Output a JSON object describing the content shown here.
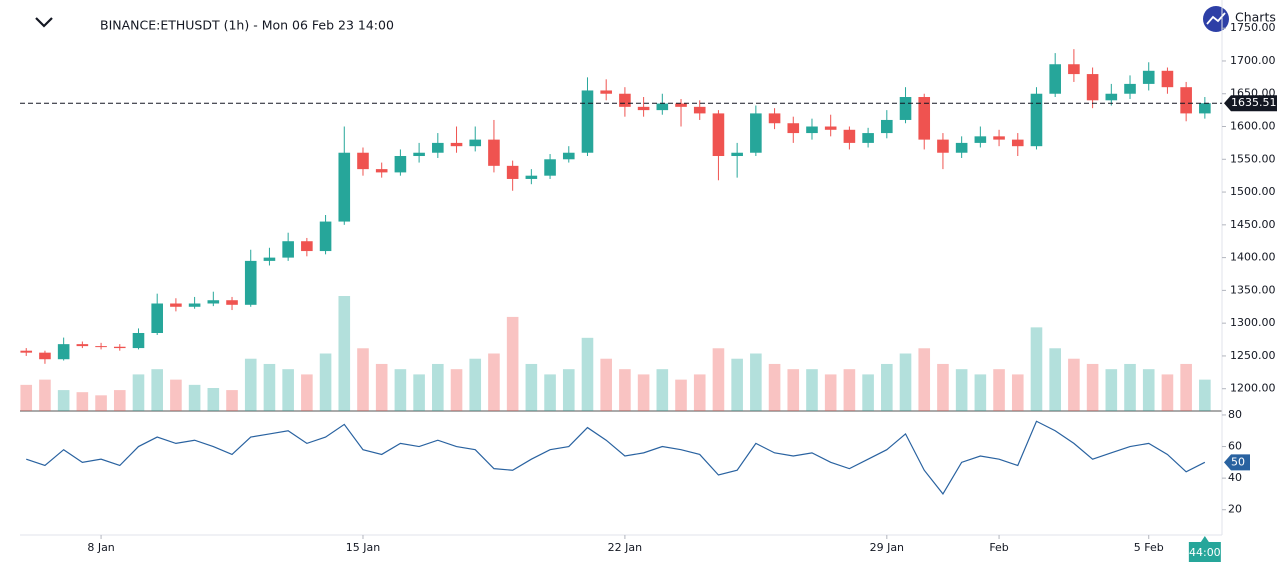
{
  "header": {
    "brand": "Charts"
  },
  "chart_data": {
    "type": "candlestick",
    "title": "BINANCE:ETHUSDT (1h) - Mon 06 Feb 23 14:00",
    "countdown_label": "44:00",
    "up_color": "#26a69a",
    "down_color": "#ef5350",
    "x": [
      0,
      12,
      24,
      36,
      48,
      60,
      72,
      84,
      96,
      108,
      120,
      132,
      144,
      156,
      168,
      180,
      192,
      204,
      216,
      228,
      240,
      252,
      264,
      276,
      288,
      300,
      312,
      324,
      336,
      348,
      360,
      372,
      384,
      396,
      408,
      420,
      432,
      444,
      456,
      468,
      480,
      492,
      504,
      516,
      528,
      540,
      552,
      564,
      576,
      588,
      600,
      612,
      624,
      636,
      648,
      660,
      672,
      684,
      696,
      708,
      720,
      732,
      744,
      756
    ],
    "open": [
      1258,
      1255,
      1245,
      1268,
      1265,
      1264,
      1262,
      1285,
      1330,
      1325,
      1330,
      1335,
      1328,
      1395,
      1400,
      1425,
      1410,
      1455,
      1560,
      1535,
      1530,
      1555,
      1560,
      1575,
      1570,
      1580,
      1540,
      1520,
      1525,
      1550,
      1560,
      1655,
      1650,
      1630,
      1625,
      1635,
      1630,
      1620,
      1555,
      1560,
      1620,
      1605,
      1590,
      1600,
      1595,
      1575,
      1590,
      1610,
      1645,
      1580,
      1560,
      1575,
      1585,
      1580,
      1570,
      1650,
      1695,
      1680,
      1640,
      1650,
      1665,
      1685,
      1660,
      1620
    ],
    "high": [
      1262,
      1258,
      1278,
      1272,
      1270,
      1268,
      1292,
      1345,
      1338,
      1340,
      1348,
      1340,
      1412,
      1415,
      1438,
      1430,
      1465,
      1600,
      1568,
      1545,
      1565,
      1575,
      1590,
      1600,
      1600,
      1610,
      1548,
      1535,
      1558,
      1570,
      1675,
      1672,
      1660,
      1645,
      1650,
      1642,
      1640,
      1625,
      1575,
      1632,
      1628,
      1615,
      1612,
      1618,
      1600,
      1598,
      1625,
      1660,
      1650,
      1590,
      1585,
      1600,
      1595,
      1590,
      1660,
      1712,
      1718,
      1690,
      1665,
      1678,
      1698,
      1690,
      1668,
      1645
    ],
    "low": [
      1250,
      1238,
      1243,
      1262,
      1260,
      1258,
      1260,
      1282,
      1318,
      1322,
      1326,
      1320,
      1325,
      1388,
      1395,
      1402,
      1405,
      1450,
      1525,
      1522,
      1525,
      1545,
      1552,
      1560,
      1562,
      1530,
      1502,
      1512,
      1520,
      1545,
      1555,
      1640,
      1615,
      1615,
      1618,
      1600,
      1610,
      1518,
      1522,
      1555,
      1596,
      1575,
      1580,
      1585,
      1565,
      1568,
      1582,
      1605,
      1565,
      1535,
      1552,
      1568,
      1570,
      1555,
      1565,
      1645,
      1668,
      1628,
      1632,
      1642,
      1655,
      1650,
      1608,
      1612
    ],
    "close": [
      1255,
      1245,
      1268,
      1265,
      1264,
      1262,
      1285,
      1330,
      1325,
      1330,
      1335,
      1328,
      1395,
      1400,
      1425,
      1410,
      1455,
      1560,
      1535,
      1530,
      1555,
      1560,
      1575,
      1570,
      1580,
      1540,
      1520,
      1525,
      1550,
      1560,
      1655,
      1650,
      1630,
      1625,
      1635,
      1630,
      1620,
      1555,
      1560,
      1620,
      1605,
      1590,
      1600,
      1595,
      1575,
      1590,
      1610,
      1645,
      1580,
      1560,
      1575,
      1585,
      1580,
      1570,
      1650,
      1695,
      1680,
      1640,
      1650,
      1665,
      1685,
      1660,
      1620,
      1635.51
    ],
    "volume": [
      25,
      30,
      20,
      18,
      15,
      20,
      35,
      40,
      30,
      25,
      22,
      20,
      50,
      45,
      40,
      35,
      55,
      110,
      60,
      45,
      40,
      35,
      45,
      40,
      50,
      55,
      90,
      45,
      35,
      40,
      70,
      50,
      40,
      35,
      40,
      30,
      35,
      60,
      50,
      55,
      45,
      40,
      40,
      35,
      40,
      35,
      45,
      55,
      60,
      45,
      40,
      35,
      40,
      35,
      80,
      60,
      50,
      45,
      40,
      45,
      40,
      35,
      45,
      30
    ],
    "xlim": [
      -4,
      767
    ],
    "xticks": [
      {
        "value": 48,
        "label": "8 Jan"
      },
      {
        "value": 216,
        "label": "15 Jan"
      },
      {
        "value": 384,
        "label": "22 Jan"
      },
      {
        "value": 552,
        "label": "29 Jan"
      },
      {
        "value": 624,
        "label": "Feb"
      },
      {
        "value": 720,
        "label": "5 Feb"
      }
    ],
    "ylim": [
      1166,
      1793
    ],
    "yticks": [
      {
        "value": 1200,
        "label": "1200.00"
      },
      {
        "value": 1250,
        "label": "1250.00"
      },
      {
        "value": 1300,
        "label": "1300.00"
      },
      {
        "value": 1350,
        "label": "1350.00"
      },
      {
        "value": 1400,
        "label": "1400.00"
      },
      {
        "value": 1450,
        "label": "1450.00"
      },
      {
        "value": 1500,
        "label": "1500.00"
      },
      {
        "value": 1550,
        "label": "1550.00"
      },
      {
        "value": 1600,
        "label": "1600.00"
      },
      {
        "value": 1650,
        "label": "1650.00"
      },
      {
        "value": 1700,
        "label": "1700.00"
      },
      {
        "value": 1750,
        "label": "1750.00"
      }
    ],
    "rsi": {
      "color": "#2962a0",
      "values": [
        52,
        48,
        58,
        50,
        52,
        48,
        60,
        66,
        62,
        64,
        60,
        55,
        66,
        68,
        70,
        62,
        66,
        74,
        58,
        55,
        62,
        60,
        64,
        60,
        58,
        46,
        45,
        52,
        58,
        60,
        72,
        64,
        54,
        56,
        60,
        58,
        55,
        42,
        45,
        62,
        56,
        54,
        56,
        50,
        46,
        52,
        58,
        68,
        45,
        30,
        50,
        54,
        52,
        48,
        76,
        70,
        62,
        52,
        56,
        60,
        62,
        55,
        44,
        50
      ],
      "ylim": [
        4,
        82.5
      ],
      "yticks": [
        20,
        40,
        60,
        80
      ]
    }
  }
}
